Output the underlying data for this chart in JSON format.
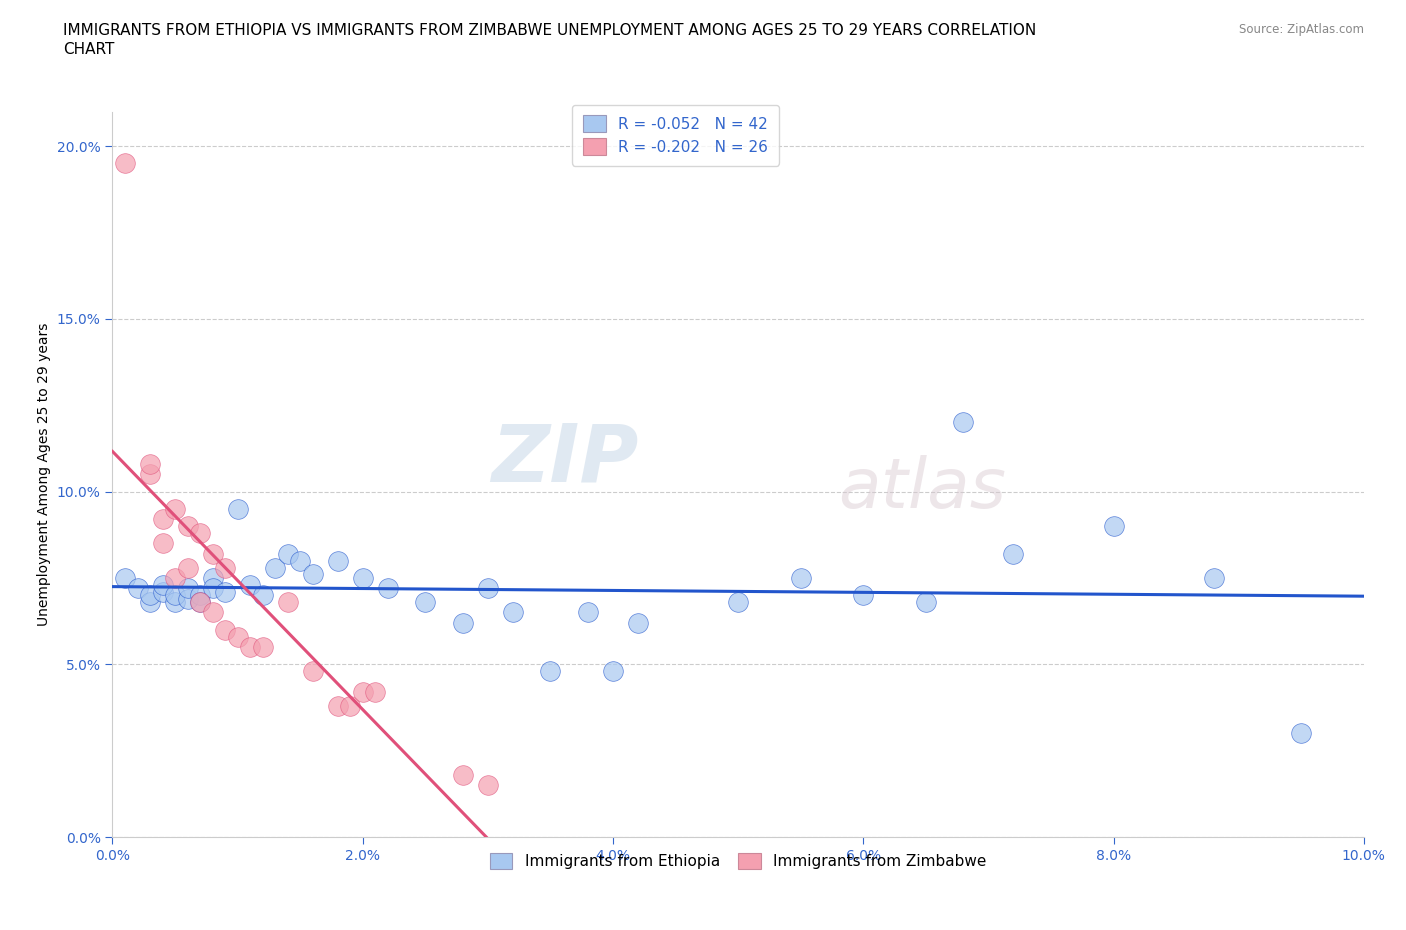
{
  "title_line1": "IMMIGRANTS FROM ETHIOPIA VS IMMIGRANTS FROM ZIMBABWE UNEMPLOYMENT AMONG AGES 25 TO 29 YEARS CORRELATION",
  "title_line2": "CHART",
  "source": "Source: ZipAtlas.com",
  "xlabel_bottom": "Immigrants from Ethiopia",
  "xlabel_bottom2": "Immigrants from Zimbabwe",
  "ylabel": "Unemployment Among Ages 25 to 29 years",
  "xlim": [
    0.0,
    0.1
  ],
  "ylim": [
    0.0,
    0.21
  ],
  "watermark": "ZIPatlas",
  "legend_r1": "R = -0.052   N = 42",
  "legend_r2": "R = -0.202   N = 26",
  "ethiopia_color": "#a8c8f0",
  "zimbabwe_color": "#f4a0b0",
  "ethiopia_line_color": "#2255cc",
  "zimbabwe_line_color": "#e0507a",
  "ethiopia_scatter": [
    [
      0.001,
      0.075
    ],
    [
      0.002,
      0.072
    ],
    [
      0.003,
      0.068
    ],
    [
      0.003,
      0.07
    ],
    [
      0.004,
      0.071
    ],
    [
      0.004,
      0.073
    ],
    [
      0.005,
      0.068
    ],
    [
      0.005,
      0.07
    ],
    [
      0.006,
      0.069
    ],
    [
      0.006,
      0.072
    ],
    [
      0.007,
      0.07
    ],
    [
      0.007,
      0.068
    ],
    [
      0.008,
      0.075
    ],
    [
      0.008,
      0.072
    ],
    [
      0.009,
      0.071
    ],
    [
      0.01,
      0.095
    ],
    [
      0.011,
      0.073
    ],
    [
      0.012,
      0.07
    ],
    [
      0.013,
      0.078
    ],
    [
      0.014,
      0.082
    ],
    [
      0.015,
      0.08
    ],
    [
      0.016,
      0.076
    ],
    [
      0.018,
      0.08
    ],
    [
      0.02,
      0.075
    ],
    [
      0.022,
      0.072
    ],
    [
      0.025,
      0.068
    ],
    [
      0.028,
      0.062
    ],
    [
      0.03,
      0.072
    ],
    [
      0.032,
      0.065
    ],
    [
      0.035,
      0.048
    ],
    [
      0.038,
      0.065
    ],
    [
      0.04,
      0.048
    ],
    [
      0.042,
      0.062
    ],
    [
      0.05,
      0.068
    ],
    [
      0.055,
      0.075
    ],
    [
      0.06,
      0.07
    ],
    [
      0.065,
      0.068
    ],
    [
      0.068,
      0.12
    ],
    [
      0.072,
      0.082
    ],
    [
      0.08,
      0.09
    ],
    [
      0.088,
      0.075
    ],
    [
      0.095,
      0.03
    ]
  ],
  "zimbabwe_scatter": [
    [
      0.001,
      0.195
    ],
    [
      0.003,
      0.105
    ],
    [
      0.003,
      0.108
    ],
    [
      0.004,
      0.092
    ],
    [
      0.004,
      0.085
    ],
    [
      0.005,
      0.095
    ],
    [
      0.005,
      0.075
    ],
    [
      0.006,
      0.09
    ],
    [
      0.006,
      0.078
    ],
    [
      0.007,
      0.088
    ],
    [
      0.007,
      0.068
    ],
    [
      0.008,
      0.082
    ],
    [
      0.008,
      0.065
    ],
    [
      0.009,
      0.078
    ],
    [
      0.009,
      0.06
    ],
    [
      0.01,
      0.058
    ],
    [
      0.011,
      0.055
    ],
    [
      0.012,
      0.055
    ],
    [
      0.014,
      0.068
    ],
    [
      0.016,
      0.048
    ],
    [
      0.018,
      0.038
    ],
    [
      0.019,
      0.038
    ],
    [
      0.02,
      0.042
    ],
    [
      0.021,
      0.042
    ],
    [
      0.028,
      0.018
    ],
    [
      0.03,
      0.015
    ]
  ],
  "title_fontsize": 11,
  "axis_label_fontsize": 10,
  "tick_fontsize": 10,
  "legend_fontsize": 11
}
